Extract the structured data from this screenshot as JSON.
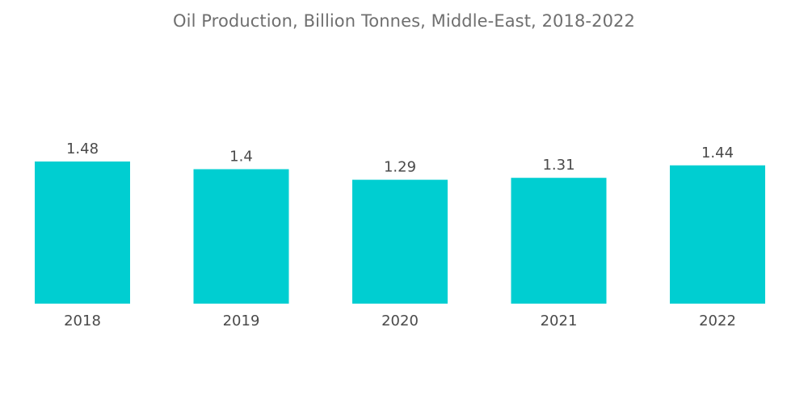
{
  "chart_data": {
    "type": "bar",
    "title": "Oil Production, Billion Tonnes, Middle-East, 2018-2022",
    "categories": [
      "2018",
      "2019",
      "2020",
      "2021",
      "2022"
    ],
    "values": [
      1.48,
      1.4,
      1.29,
      1.31,
      1.44
    ],
    "value_labels": [
      "1.48",
      "1.4",
      "1.29",
      "1.31",
      "1.44"
    ],
    "xlabel": "",
    "ylabel": "",
    "ylim": [
      0,
      1.48
    ],
    "grid": false,
    "legend": "none",
    "bar_color": "#00ced1"
  }
}
